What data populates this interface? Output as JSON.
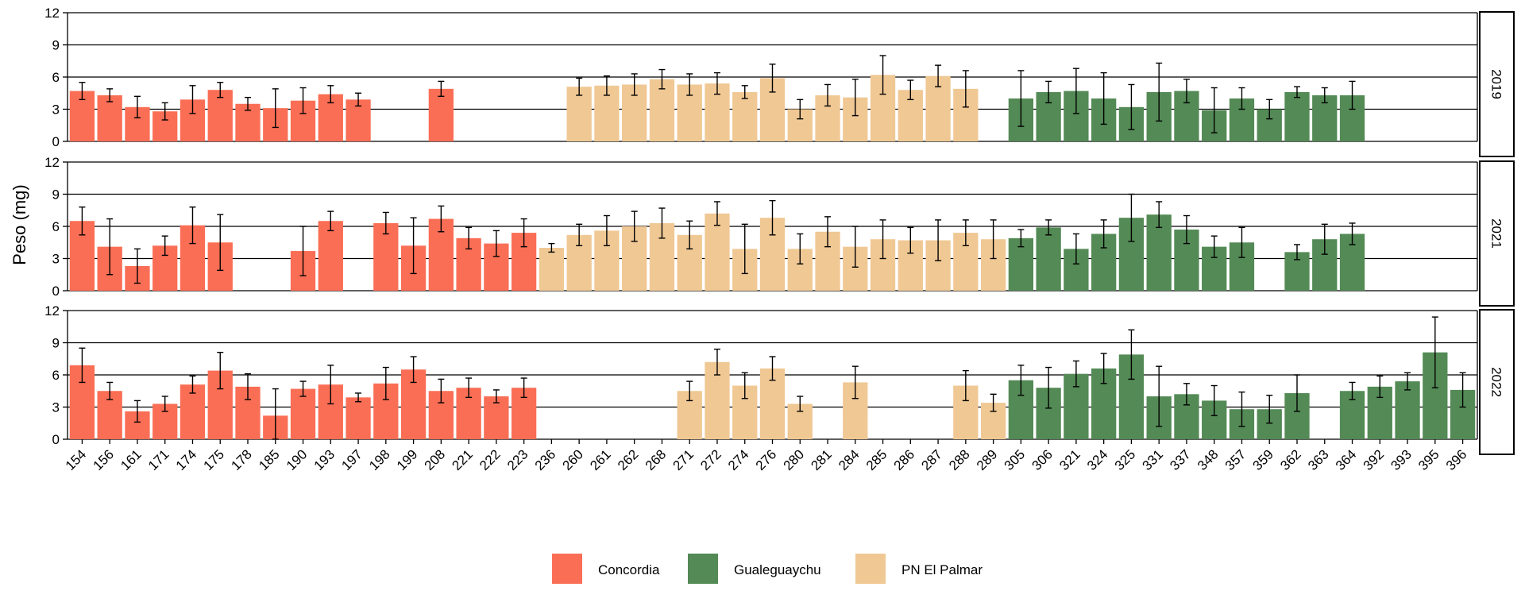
{
  "chart_data": {
    "type": "bar",
    "ylabel": "Peso (mg)",
    "xlabel": "",
    "ylim": [
      0,
      12
    ],
    "yticks": [
      0,
      3,
      6,
      9,
      12
    ],
    "grid": "horizontal",
    "legend_position": "bottom",
    "categories": [
      "154",
      "156",
      "161",
      "171",
      "174",
      "175",
      "178",
      "185",
      "190",
      "193",
      "197",
      "198",
      "199",
      "208",
      "221",
      "222",
      "223",
      "236",
      "260",
      "261",
      "262",
      "268",
      "271",
      "272",
      "274",
      "276",
      "280",
      "281",
      "284",
      "285",
      "286",
      "287",
      "288",
      "289",
      "305",
      "306",
      "321",
      "324",
      "325",
      "331",
      "337",
      "348",
      "357",
      "359",
      "362",
      "363",
      "364",
      "392",
      "393",
      "395",
      "396"
    ],
    "groups": [
      {
        "name": "Concordia",
        "color": "#FA6E55"
      },
      {
        "name": "Gualeguaychu",
        "color": "#538A55"
      },
      {
        "name": "PN El Palmar",
        "color": "#F0C894"
      }
    ],
    "category_group": [
      0,
      0,
      0,
      0,
      0,
      0,
      0,
      0,
      0,
      0,
      0,
      0,
      0,
      0,
      0,
      0,
      0,
      2,
      2,
      2,
      2,
      2,
      2,
      2,
      2,
      2,
      2,
      2,
      2,
      2,
      2,
      2,
      2,
      2,
      1,
      1,
      1,
      1,
      1,
      1,
      1,
      1,
      1,
      1,
      1,
      1,
      1,
      1,
      1,
      1,
      1
    ],
    "panels": [
      {
        "label": "2019",
        "values": [
          4.7,
          4.3,
          3.2,
          2.8,
          3.9,
          4.8,
          3.5,
          3.1,
          3.8,
          4.4,
          3.9,
          null,
          null,
          4.9,
          null,
          null,
          null,
          null,
          5.1,
          5.2,
          5.3,
          5.8,
          5.3,
          5.4,
          4.6,
          5.9,
          3.0,
          4.3,
          4.1,
          6.2,
          4.8,
          6.1,
          4.9,
          null,
          4.0,
          4.6,
          4.7,
          4.0,
          3.2,
          4.6,
          4.7,
          2.9,
          4.0,
          3.0,
          4.6,
          4.3,
          4.3,
          null,
          null,
          null,
          null
        ],
        "errors": [
          0.8,
          0.6,
          1.0,
          0.8,
          1.3,
          0.7,
          0.6,
          1.8,
          1.2,
          0.8,
          0.6,
          null,
          null,
          0.7,
          null,
          null,
          null,
          null,
          0.8,
          0.9,
          1.0,
          0.9,
          1.0,
          1.0,
          0.6,
          1.3,
          0.9,
          1.0,
          1.7,
          1.8,
          0.9,
          1.0,
          1.7,
          null,
          2.6,
          1.0,
          2.1,
          2.4,
          2.1,
          2.7,
          1.1,
          2.1,
          1.0,
          0.9,
          0.5,
          0.7,
          1.3,
          null,
          null,
          null,
          null
        ]
      },
      {
        "label": "2021",
        "values": [
          6.5,
          4.1,
          2.3,
          4.2,
          6.1,
          4.5,
          null,
          null,
          3.7,
          6.5,
          null,
          6.3,
          4.2,
          6.7,
          4.9,
          4.4,
          5.4,
          4.0,
          5.2,
          5.6,
          6.0,
          6.3,
          5.2,
          7.2,
          3.9,
          6.8,
          3.9,
          5.5,
          4.1,
          4.8,
          4.7,
          4.7,
          5.4,
          4.8,
          4.9,
          5.9,
          3.9,
          5.3,
          6.8,
          7.1,
          5.7,
          4.1,
          4.5,
          null,
          3.6,
          4.8,
          5.3,
          null,
          null,
          null,
          null
        ],
        "errors": [
          1.3,
          2.6,
          1.6,
          0.9,
          1.7,
          2.6,
          null,
          null,
          2.3,
          0.9,
          null,
          1.0,
          2.6,
          1.2,
          1.0,
          1.2,
          1.3,
          0.4,
          1.0,
          1.4,
          1.4,
          1.4,
          1.3,
          1.1,
          2.3,
          1.6,
          1.4,
          1.4,
          1.9,
          1.8,
          1.2,
          1.9,
          1.2,
          1.8,
          0.8,
          0.7,
          1.4,
          1.3,
          2.2,
          1.2,
          1.3,
          1.0,
          1.4,
          null,
          0.7,
          1.4,
          1.0,
          null,
          null,
          null,
          null
        ]
      },
      {
        "label": "2022",
        "values": [
          6.9,
          4.5,
          2.6,
          3.3,
          5.1,
          6.4,
          4.9,
          2.2,
          4.7,
          5.1,
          3.9,
          5.2,
          6.5,
          4.5,
          4.8,
          4.0,
          4.8,
          null,
          null,
          null,
          null,
          null,
          4.5,
          7.2,
          5.0,
          6.6,
          3.3,
          null,
          5.3,
          null,
          null,
          null,
          5.0,
          3.4,
          5.5,
          4.8,
          6.1,
          6.6,
          7.9,
          4.0,
          4.2,
          3.6,
          2.8,
          2.8,
          4.3,
          null,
          4.5,
          4.9,
          5.4,
          8.1,
          4.6
        ],
        "errors": [
          1.6,
          0.8,
          1.0,
          0.7,
          0.8,
          1.7,
          1.2,
          2.5,
          0.7,
          1.8,
          0.4,
          1.5,
          1.2,
          1.1,
          0.9,
          0.6,
          0.9,
          null,
          null,
          null,
          null,
          null,
          0.9,
          1.2,
          1.2,
          1.1,
          0.7,
          null,
          1.5,
          null,
          null,
          null,
          1.4,
          0.8,
          1.4,
          1.9,
          1.2,
          1.4,
          2.3,
          2.8,
          1.0,
          1.4,
          1.6,
          1.3,
          1.7,
          null,
          0.8,
          1.0,
          0.8,
          3.3,
          1.6
        ]
      }
    ]
  }
}
